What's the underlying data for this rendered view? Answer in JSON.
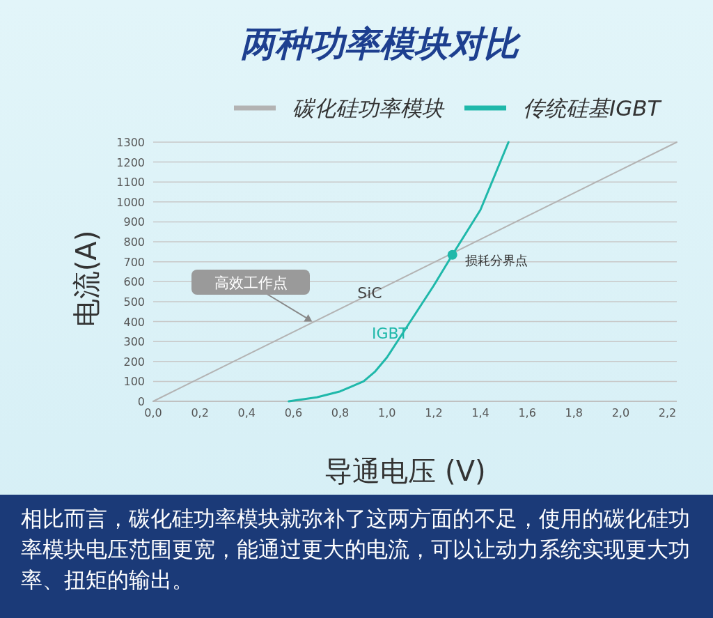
{
  "chart_data": {
    "type": "line",
    "title": "两种功率模块对比",
    "xlabel": "导通电压 (V)",
    "ylabel": "电流(A)",
    "xlim": [
      0,
      2.24
    ],
    "ylim": [
      0,
      1300
    ],
    "xticks": [
      {
        "value": 0,
        "label": "0,0"
      },
      {
        "value": 0.2,
        "label": "0,2"
      },
      {
        "value": 0.4,
        "label": "0,4"
      },
      {
        "value": 0.6,
        "label": "0,6"
      },
      {
        "value": 0.8,
        "label": "0,8"
      },
      {
        "value": 1.0,
        "label": "1,0"
      },
      {
        "value": 1.2,
        "label": "1,2"
      },
      {
        "value": 1.4,
        "label": "1,4"
      },
      {
        "value": 1.6,
        "label": "1,6"
      },
      {
        "value": 1.8,
        "label": "1,8"
      },
      {
        "value": 2.0,
        "label": "2,0"
      },
      {
        "value": 2.2,
        "label": "2,2"
      }
    ],
    "yticks": [
      0,
      100,
      200,
      300,
      400,
      500,
      600,
      700,
      800,
      900,
      1000,
      1100,
      1200,
      1300
    ],
    "grid": "y",
    "legend": "top",
    "series": [
      {
        "name": "碳化硅功率模块",
        "color": "#b3b3b3",
        "x": [
          0,
          2.24
        ],
        "values": [
          0,
          1300
        ]
      },
      {
        "name": "传统硅基IGBT",
        "color": "#1fb8aa",
        "x": [
          0.58,
          0.7,
          0.8,
          0.9,
          0.95,
          1.0,
          1.05,
          1.1,
          1.2,
          1.28,
          1.4,
          1.52
        ],
        "values": [
          0,
          20,
          50,
          100,
          150,
          220,
          310,
          400,
          580,
          735,
          960,
          1300
        ]
      }
    ],
    "annotations": [
      {
        "text": "高效工作点",
        "x": 0.68,
        "y": 400
      },
      {
        "text": "损耗分界点",
        "x": 1.28,
        "y": 735
      },
      "SiC",
      "IGBT",
      "相比而言，碳化硅功率模块就弥补了这两方面的不足，使用的碳化硅功率模块电压范围更宽，能通过更大的电流，可以让动力系统实现更大功率、扭矩的输出。"
    ]
  }
}
